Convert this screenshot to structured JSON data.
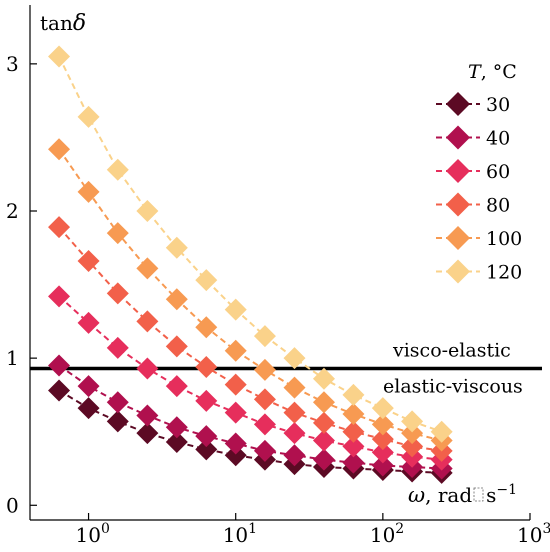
{
  "chart_data": {
    "type": "line",
    "x_scale": "log",
    "ylabel": "tanδ",
    "ylabel_base": "tan",
    "ylabel_symbol": "δ",
    "xlabel": "ω, rad⋅s⁻¹",
    "xlabel_symbol": "ω",
    "xlabel_unit": "rad",
    "xlabel_unit2": "s",
    "xlabel_exp": "−1",
    "xlim": [
      0.4,
      1000
    ],
    "ylim": [
      -0.1,
      3.4
    ],
    "x_ticks": [
      {
        "value": 1,
        "base": "10",
        "exp": "0"
      },
      {
        "value": 10,
        "base": "10",
        "exp": "1"
      },
      {
        "value": 100,
        "base": "10",
        "exp": "2"
      },
      {
        "value": 1000,
        "base": "10",
        "exp": "3"
      }
    ],
    "y_ticks": [
      {
        "value": 0,
        "label": "0"
      },
      {
        "value": 1,
        "label": "1"
      },
      {
        "value": 2,
        "label": "2"
      },
      {
        "value": 3,
        "label": "3"
      }
    ],
    "x": [
      0.63,
      1.0,
      1.58,
      2.51,
      3.98,
      6.31,
      10.0,
      15.8,
      25.1,
      39.8,
      63.1,
      100,
      158,
      251
    ],
    "legend": {
      "title_symbol": "T",
      "title_unit": ", °C",
      "position": "top-right"
    },
    "series": [
      {
        "name": "30",
        "color": "#5c0a24",
        "values": [
          0.78,
          0.66,
          0.57,
          0.49,
          0.43,
          0.38,
          0.34,
          0.31,
          0.28,
          0.26,
          0.25,
          0.24,
          0.23,
          0.22
        ]
      },
      {
        "name": "40",
        "color": "#b0104e",
        "values": [
          0.95,
          0.81,
          0.7,
          0.61,
          0.53,
          0.47,
          0.42,
          0.37,
          0.34,
          0.31,
          0.29,
          0.27,
          0.26,
          0.25
        ]
      },
      {
        "name": "60",
        "color": "#e62e5c",
        "values": [
          1.42,
          1.24,
          1.07,
          0.93,
          0.81,
          0.71,
          0.63,
          0.55,
          0.49,
          0.44,
          0.4,
          0.36,
          0.33,
          0.31
        ]
      },
      {
        "name": "80",
        "color": "#f2604a",
        "values": [
          1.89,
          1.66,
          1.44,
          1.25,
          1.08,
          0.94,
          0.82,
          0.72,
          0.63,
          0.56,
          0.5,
          0.45,
          0.4,
          0.37
        ]
      },
      {
        "name": "100",
        "color": "#f79a52",
        "values": [
          2.42,
          2.13,
          1.85,
          1.61,
          1.4,
          1.21,
          1.05,
          0.92,
          0.8,
          0.7,
          0.62,
          0.55,
          0.49,
          0.44
        ]
      },
      {
        "name": "120",
        "color": "#fad28a",
        "values": [
          3.05,
          2.64,
          2.28,
          2.0,
          1.75,
          1.53,
          1.33,
          1.15,
          1.0,
          0.86,
          0.75,
          0.66,
          0.57,
          0.5
        ]
      }
    ],
    "reference_line": {
      "y": 0.93,
      "label_above": "visco-elastic",
      "label_below": "elastic-viscous",
      "color": "#000000"
    },
    "grid": false
  }
}
